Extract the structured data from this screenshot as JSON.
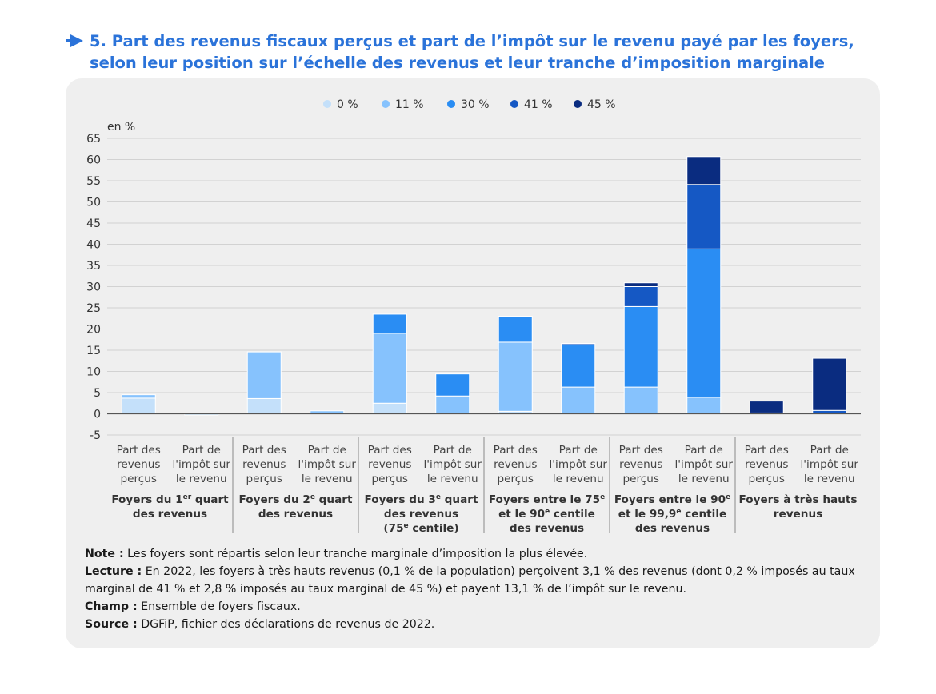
{
  "figure": {
    "title_line1": "5. Part des revenus fiscaux perçus et part de l’impôt sur le revenu payé par les foyers,",
    "title_line2": "selon leur position sur l’échelle des revenus et leur tranche d’imposition marginale"
  },
  "colors": {
    "accent": "#2b73d9",
    "panel_bg": "#efefef",
    "series": [
      "#c4e0fa",
      "#86c2fd",
      "#2a8df3",
      "#1558c4",
      "#0a2c80"
    ]
  },
  "chart_data": {
    "type": "bar",
    "stacked": true,
    "unit_label": "en %",
    "ylim": [
      -5,
      65
    ],
    "yticks": [
      -5,
      0,
      5,
      10,
      15,
      20,
      25,
      30,
      35,
      40,
      45,
      50,
      55,
      60,
      65
    ],
    "grid": true,
    "legend_position": "top-center",
    "categories": [
      "Part des revenus perçus",
      "Part de l'impôt sur le revenu",
      "Part des revenus perçus",
      "Part de l'impôt sur le revenu",
      "Part des revenus perçus",
      "Part de l'impôt sur le revenu",
      "Part des revenus perçus",
      "Part de l'impôt sur le revenu",
      "Part des revenus perçus",
      "Part de l'impôt sur le revenu",
      "Part des revenus perçus",
      "Part de l'impôt sur le revenu"
    ],
    "category_lines": [
      [
        "Part des",
        "revenus",
        "perçus"
      ],
      [
        "Part de",
        "l'impôt sur",
        "le revenu"
      ]
    ],
    "groups": [
      {
        "lines": [
          "Foyers du 1er quart",
          "des revenus"
        ]
      },
      {
        "lines": [
          "Foyers du 2e quart",
          "des revenus"
        ]
      },
      {
        "lines": [
          "Foyers du 3e quart",
          "des revenus",
          "(75e centile)"
        ]
      },
      {
        "lines": [
          "Foyers entre le 75e",
          "et le 90e centile",
          "des revenus"
        ]
      },
      {
        "lines": [
          "Foyers entre le 90e",
          "et le 99,9e centile",
          "des revenus"
        ]
      },
      {
        "lines": [
          "Foyers à très hauts",
          "revenus"
        ]
      }
    ],
    "series": [
      {
        "name": "0 %",
        "values": [
          3.7,
          -0.3,
          3.6,
          0.0,
          2.5,
          0.0,
          0.6,
          0.0,
          0.0,
          0.0,
          0.0,
          0.0
        ]
      },
      {
        "name": "11 %",
        "values": [
          0.8,
          0.0,
          11.0,
          0.7,
          16.5,
          4.2,
          16.3,
          6.3,
          6.3,
          3.9,
          0.0,
          0.0
        ]
      },
      {
        "name": "30 %",
        "values": [
          0.0,
          0.0,
          0.0,
          0.0,
          4.5,
          5.2,
          6.1,
          10.0,
          19.0,
          35.0,
          0.0,
          0.0
        ]
      },
      {
        "name": "41 %",
        "values": [
          0.0,
          0.0,
          0.0,
          0.0,
          0.0,
          0.0,
          0.0,
          0.3,
          4.7,
          15.2,
          0.2,
          0.8
        ]
      },
      {
        "name": "45 %",
        "values": [
          0.0,
          0.0,
          0.0,
          0.0,
          0.0,
          0.0,
          0.0,
          0.0,
          0.9,
          6.6,
          2.8,
          12.3
        ]
      }
    ]
  },
  "notes": [
    {
      "label": "Note :",
      "text": " Les foyers sont répartis selon leur tranche marginale d’imposition la plus élevée."
    },
    {
      "label": "Lecture :",
      "text": " En 2022, les foyers à très hauts revenus (0,1 % de la population) perçoivent 3,1 % des revenus (dont 0,2 % imposés au taux marginal de 41 % et 2,8 % imposés au taux marginal de 45 %) et payent 13,1 % de l’impôt sur le revenu."
    },
    {
      "label": "Champ :",
      "text": " Ensemble de foyers fiscaux."
    },
    {
      "label": "Source :",
      "text": " DGFiP, fichier des déclarations de revenus de 2022."
    }
  ]
}
